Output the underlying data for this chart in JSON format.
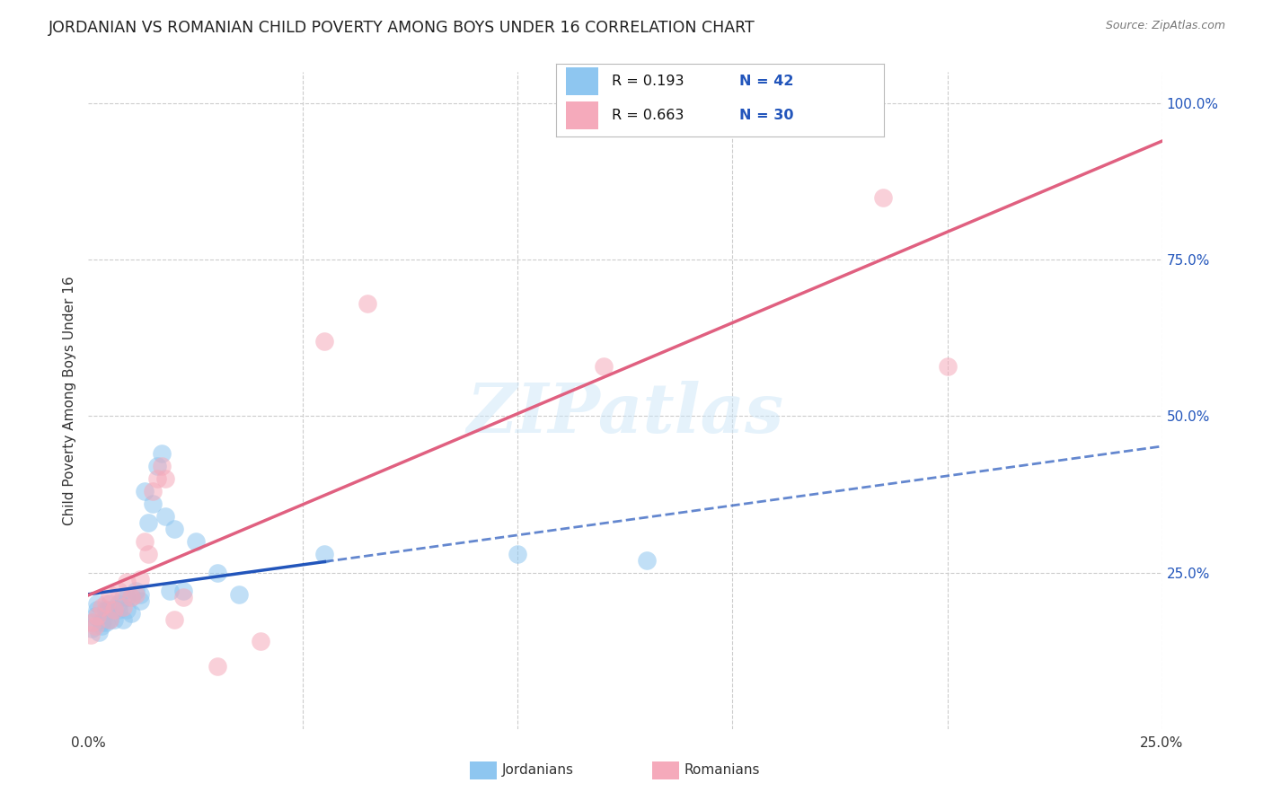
{
  "title": "JORDANIAN VS ROMANIAN CHILD POVERTY AMONG BOYS UNDER 16 CORRELATION CHART",
  "source": "Source: ZipAtlas.com",
  "ylabel": "Child Poverty Among Boys Under 16",
  "legend_r1": "R = 0.193",
  "legend_n1": "N = 42",
  "legend_r2": "R = 0.663",
  "legend_n2": "N = 30",
  "legend_label1": "Jordanians",
  "legend_label2": "Romanians",
  "jordanian_color": "#8ec6f0",
  "romanian_color": "#f5aabb",
  "jordanian_line_color": "#2255bb",
  "romanian_line_color": "#e06080",
  "R_color": "#111111",
  "N_color": "#2255bb",
  "background": "#ffffff",
  "grid_color": "#cccccc",
  "dot_size": 220,
  "dot_alpha": 0.55,
  "jordanian_x": [
    0.0008,
    0.001,
    0.0015,
    0.002,
    0.002,
    0.0025,
    0.003,
    0.003,
    0.0035,
    0.004,
    0.004,
    0.0045,
    0.005,
    0.005,
    0.006,
    0.006,
    0.007,
    0.007,
    0.008,
    0.008,
    0.009,
    0.009,
    0.01,
    0.01,
    0.011,
    0.012,
    0.012,
    0.013,
    0.014,
    0.015,
    0.016,
    0.017,
    0.018,
    0.019,
    0.02,
    0.022,
    0.025,
    0.03,
    0.035,
    0.055,
    0.1,
    0.13
  ],
  "jordanian_y": [
    0.16,
    0.17,
    0.18,
    0.19,
    0.2,
    0.155,
    0.165,
    0.17,
    0.175,
    0.17,
    0.19,
    0.19,
    0.175,
    0.2,
    0.19,
    0.175,
    0.19,
    0.2,
    0.175,
    0.21,
    0.21,
    0.19,
    0.21,
    0.185,
    0.22,
    0.205,
    0.215,
    0.38,
    0.33,
    0.36,
    0.42,
    0.44,
    0.34,
    0.22,
    0.32,
    0.22,
    0.3,
    0.25,
    0.215,
    0.28,
    0.28,
    0.27
  ],
  "romanian_x": [
    0.0005,
    0.001,
    0.0015,
    0.002,
    0.003,
    0.004,
    0.005,
    0.005,
    0.006,
    0.007,
    0.008,
    0.009,
    0.01,
    0.011,
    0.012,
    0.013,
    0.014,
    0.015,
    0.016,
    0.017,
    0.018,
    0.02,
    0.022,
    0.03,
    0.04,
    0.055,
    0.065,
    0.12,
    0.185,
    0.2
  ],
  "romanian_y": [
    0.15,
    0.17,
    0.165,
    0.18,
    0.195,
    0.2,
    0.175,
    0.215,
    0.19,
    0.22,
    0.195,
    0.235,
    0.21,
    0.215,
    0.24,
    0.3,
    0.28,
    0.38,
    0.4,
    0.42,
    0.4,
    0.175,
    0.21,
    0.1,
    0.14,
    0.62,
    0.68,
    0.58,
    0.85,
    0.58
  ],
  "xlim": [
    0.0,
    0.25
  ],
  "ylim": [
    0.0,
    1.05
  ],
  "solid_line_end_j": 0.055,
  "solid_line_end_r": 0.25
}
